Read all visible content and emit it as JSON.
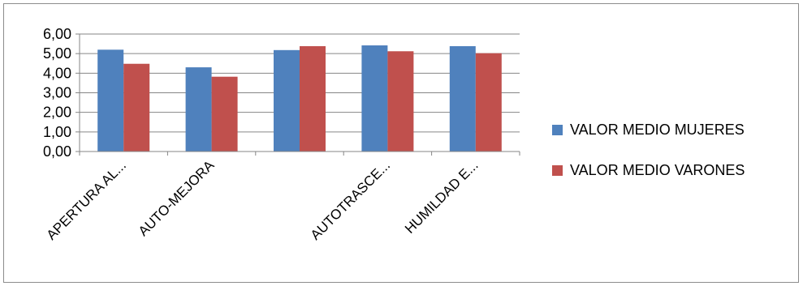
{
  "chart_data": {
    "type": "bar",
    "title": "",
    "xlabel": "",
    "ylabel": "",
    "categories": [
      "APERTURA AL...",
      "AUTO-MEJORA",
      "",
      "AUTOTRASCE...",
      "HUMILDAD E..."
    ],
    "series": [
      {
        "name": "VALOR MEDIO MUJERES",
        "color": "#4f81bd",
        "values": [
          5.2,
          4.3,
          5.18,
          5.42,
          5.38
        ]
      },
      {
        "name": "VALOR MEDIO VARONES",
        "color": "#c0504d",
        "values": [
          4.48,
          3.82,
          5.38,
          5.12,
          5.02
        ]
      }
    ],
    "ylim": [
      0,
      6
    ],
    "yticks": [
      "0,00",
      "1,00",
      "2,00",
      "3,00",
      "4,00",
      "5,00",
      "6,00"
    ],
    "grid": true,
    "legend_position": "right"
  }
}
